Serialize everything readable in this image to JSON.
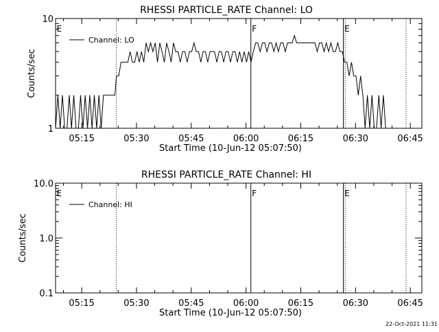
{
  "footer": {
    "timestamp": "22-Oct-2021 11:31"
  },
  "chart_data": [
    {
      "type": "line",
      "title": "RHESSI PARTICLE_RATE Channel: LO",
      "xlabel": "Start Time (10-Jun-12 05:07:50)",
      "ylabel": "Counts/sec",
      "x_unit": "time of day (HH:MM:SS, 10-Jun-12)",
      "xlim": [
        "05:07:50",
        "06:48:10"
      ],
      "xticks": [
        "05:15",
        "05:30",
        "05:45",
        "06:00",
        "06:15",
        "06:30",
        "06:45"
      ],
      "y_scale": "log",
      "ylim": [
        1,
        10
      ],
      "yticks": [
        "1",
        "10"
      ],
      "legend": {
        "position": "top-left",
        "entries": [
          "Channel: LO"
        ]
      },
      "markers": [
        {
          "label": "E",
          "time": "05:07:50",
          "style": "none"
        },
        {
          "label": "",
          "time": "05:24:30",
          "style": "dotted"
        },
        {
          "label": "F",
          "time": "06:01:20",
          "style": "solid"
        },
        {
          "label": "E",
          "time": "06:26:40",
          "style": "solid"
        },
        {
          "label": "",
          "time": "06:27:10",
          "style": "dotted"
        },
        {
          "label": "",
          "time": "06:43:50",
          "style": "dotted"
        }
      ],
      "series": [
        {
          "name": "Channel: LO",
          "values": [
            [
              "05:07:50",
              1
            ],
            [
              "05:08:28",
              2
            ],
            [
              "05:09:05",
              1
            ],
            [
              "05:09:43",
              2
            ],
            [
              "05:10:20",
              1
            ],
            [
              "05:10:58",
              1
            ],
            [
              "05:11:35",
              2
            ],
            [
              "05:12:12",
              1
            ],
            [
              "05:12:50",
              2
            ],
            [
              "05:13:27",
              1
            ],
            [
              "05:14:05",
              1
            ],
            [
              "05:14:42",
              2
            ],
            [
              "05:15:20",
              1
            ],
            [
              "05:15:57",
              2
            ],
            [
              "05:16:35",
              1
            ],
            [
              "05:17:12",
              2
            ],
            [
              "05:17:50",
              1
            ],
            [
              "05:18:27",
              2
            ],
            [
              "05:19:05",
              1
            ],
            [
              "05:19:42",
              2
            ],
            [
              "05:20:20",
              1
            ],
            [
              "05:20:57",
              2
            ],
            [
              "05:21:35",
              2
            ],
            [
              "05:22:12",
              2
            ],
            [
              "05:22:50",
              2
            ],
            [
              "05:23:27",
              2
            ],
            [
              "05:24:05",
              2
            ],
            [
              "05:24:30",
              3
            ],
            [
              "05:25:08",
              3
            ],
            [
              "05:25:45",
              4
            ],
            [
              "05:26:23",
              4
            ],
            [
              "05:27:00",
              4
            ],
            [
              "05:27:38",
              4
            ],
            [
              "05:28:15",
              5
            ],
            [
              "05:28:53",
              4
            ],
            [
              "05:29:30",
              4
            ],
            [
              "05:30:08",
              5
            ],
            [
              "05:30:45",
              4
            ],
            [
              "05:31:23",
              5
            ],
            [
              "05:32:00",
              4
            ],
            [
              "05:32:38",
              6
            ],
            [
              "05:33:15",
              5
            ],
            [
              "05:33:53",
              6
            ],
            [
              "05:34:30",
              5
            ],
            [
              "05:35:08",
              6
            ],
            [
              "05:35:45",
              4
            ],
            [
              "05:36:23",
              6
            ],
            [
              "05:37:00",
              5
            ],
            [
              "05:37:38",
              4
            ],
            [
              "05:38:15",
              6
            ],
            [
              "05:38:53",
              5
            ],
            [
              "05:39:30",
              4
            ],
            [
              "05:40:08",
              6
            ],
            [
              "05:40:45",
              5
            ],
            [
              "05:41:23",
              5
            ],
            [
              "05:42:00",
              4
            ],
            [
              "05:42:38",
              5
            ],
            [
              "05:43:15",
              5
            ],
            [
              "05:43:53",
              4
            ],
            [
              "05:44:30",
              5
            ],
            [
              "05:45:08",
              5
            ],
            [
              "05:45:45",
              6
            ],
            [
              "05:46:23",
              5
            ],
            [
              "05:47:00",
              5
            ],
            [
              "05:47:38",
              4
            ],
            [
              "05:48:15",
              5
            ],
            [
              "05:48:53",
              5
            ],
            [
              "05:49:30",
              4
            ],
            [
              "05:50:08",
              5
            ],
            [
              "05:50:45",
              5
            ],
            [
              "05:51:23",
              5
            ],
            [
              "05:52:00",
              4
            ],
            [
              "05:52:38",
              5
            ],
            [
              "05:53:15",
              5
            ],
            [
              "05:53:53",
              4
            ],
            [
              "05:54:30",
              5
            ],
            [
              "05:55:08",
              5
            ],
            [
              "05:55:45",
              4
            ],
            [
              "05:56:23",
              5
            ],
            [
              "05:57:00",
              5
            ],
            [
              "05:57:38",
              4
            ],
            [
              "05:58:15",
              5
            ],
            [
              "05:58:53",
              4
            ],
            [
              "05:59:30",
              5
            ],
            [
              "06:00:08",
              4
            ],
            [
              "06:00:45",
              5
            ],
            [
              "06:01:23",
              4
            ],
            [
              "06:02:00",
              5
            ],
            [
              "06:02:38",
              6
            ],
            [
              "06:03:15",
              6
            ],
            [
              "06:03:53",
              5
            ],
            [
              "06:04:30",
              6
            ],
            [
              "06:05:08",
              6
            ],
            [
              "06:05:45",
              5
            ],
            [
              "06:06:23",
              6
            ],
            [
              "06:07:00",
              6
            ],
            [
              "06:07:38",
              5
            ],
            [
              "06:08:15",
              6
            ],
            [
              "06:08:53",
              5
            ],
            [
              "06:09:30",
              6
            ],
            [
              "06:10:08",
              6
            ],
            [
              "06:10:45",
              5
            ],
            [
              "06:11:23",
              6
            ],
            [
              "06:12:00",
              6
            ],
            [
              "06:12:38",
              6
            ],
            [
              "06:13:15",
              7
            ],
            [
              "06:13:53",
              6
            ],
            [
              "06:14:30",
              6
            ],
            [
              "06:15:08",
              6
            ],
            [
              "06:15:45",
              6
            ],
            [
              "06:16:23",
              6
            ],
            [
              "06:17:00",
              6
            ],
            [
              "06:17:38",
              6
            ],
            [
              "06:18:15",
              6
            ],
            [
              "06:18:53",
              6
            ],
            [
              "06:19:30",
              5
            ],
            [
              "06:20:08",
              6
            ],
            [
              "06:20:45",
              6
            ],
            [
              "06:21:23",
              5
            ],
            [
              "06:22:00",
              6
            ],
            [
              "06:22:38",
              5
            ],
            [
              "06:23:15",
              6
            ],
            [
              "06:23:53",
              5
            ],
            [
              "06:24:30",
              5
            ],
            [
              "06:25:08",
              6
            ],
            [
              "06:25:45",
              5
            ],
            [
              "06:26:23",
              5
            ],
            [
              "06:27:00",
              4
            ],
            [
              "06:27:38",
              4
            ],
            [
              "06:28:15",
              3
            ],
            [
              "06:28:53",
              4
            ],
            [
              "06:29:30",
              3
            ],
            [
              "06:30:08",
              3
            ],
            [
              "06:30:45",
              2
            ],
            [
              "06:31:23",
              3
            ],
            [
              "06:32:00",
              2
            ],
            [
              "06:32:38",
              1
            ],
            [
              "06:33:15",
              2
            ],
            [
              "06:33:53",
              1
            ],
            [
              "06:34:30",
              2
            ],
            [
              "06:35:08",
              1
            ],
            [
              "06:35:45",
              1
            ],
            [
              "06:36:23",
              2
            ],
            [
              "06:37:00",
              1
            ],
            [
              "06:37:38",
              2
            ],
            [
              "06:38:15",
              1
            ]
          ]
        }
      ]
    },
    {
      "type": "line",
      "title": "RHESSI PARTICLE_RATE Channel: HI",
      "xlabel": "Start Time (10-Jun-12 05:07:50)",
      "ylabel": "Counts/sec",
      "x_unit": "time of day (HH:MM:SS, 10-Jun-12)",
      "xlim": [
        "05:07:50",
        "06:48:10"
      ],
      "xticks": [
        "05:15",
        "05:30",
        "05:45",
        "06:00",
        "06:15",
        "06:30",
        "06:45"
      ],
      "y_scale": "log",
      "ylim": [
        0.1,
        10
      ],
      "yticks": [
        "0.1",
        "1.0",
        "10.0"
      ],
      "legend": {
        "position": "top-left",
        "entries": [
          "Channel: HI"
        ]
      },
      "markers": [
        {
          "label": "E",
          "time": "05:07:50",
          "style": "none"
        },
        {
          "label": "",
          "time": "05:24:30",
          "style": "dotted"
        },
        {
          "label": "F",
          "time": "06:01:20",
          "style": "solid"
        },
        {
          "label": "E",
          "time": "06:26:40",
          "style": "solid"
        },
        {
          "label": "",
          "time": "06:27:10",
          "style": "dotted"
        },
        {
          "label": "",
          "time": "06:43:50",
          "style": "dotted"
        }
      ],
      "series": [
        {
          "name": "Channel: HI",
          "values": []
        }
      ]
    }
  ]
}
